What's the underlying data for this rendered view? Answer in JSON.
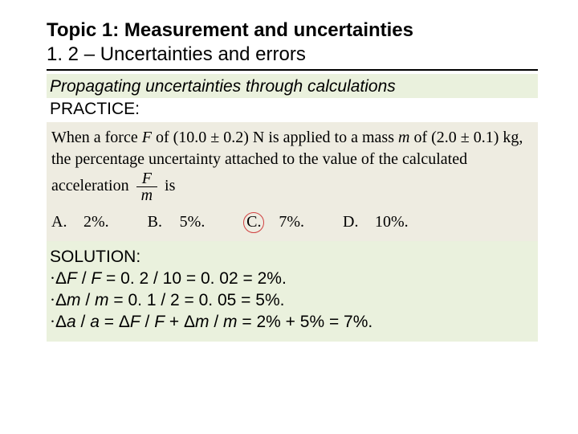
{
  "title": {
    "line1": "Topic 1: Measurement and uncertainties",
    "line2": "1. 2 – Uncertainties and errors"
  },
  "section": {
    "heading": "Propagating uncertainties through calculations",
    "practice_label": "PRACTICE:"
  },
  "problem": {
    "text_before_frac": "When a force F of (10.0 ± 0.2) N is applied to a mass m of (2.0 ± 0.1) kg, the percentage uncertainty attached to the value of the calculated acceleration ",
    "frac_num": "F",
    "frac_den": "m",
    "text_after_frac": " is",
    "answers": [
      {
        "letter": "A.",
        "value": "2%."
      },
      {
        "letter": "B.",
        "value": "5%."
      },
      {
        "letter": "C.",
        "value": "7%."
      },
      {
        "letter": "D.",
        "value": "10%."
      }
    ],
    "correct_index": 2
  },
  "solution": {
    "label": "SOLUTION:",
    "lines": [
      "·ΔF / F = 0. 2 / 10 =  0. 02 = 2%.",
      "·Δm / m = 0. 1 / 2 =  0. 05 = 5%.",
      "·Δa / a = ΔF / F + Δm / m = 2% + 5% = 7%."
    ]
  },
  "colors": {
    "problem_bg": "#eeece1",
    "green_bg": "#eaf1dd",
    "circle": "#d04040"
  }
}
